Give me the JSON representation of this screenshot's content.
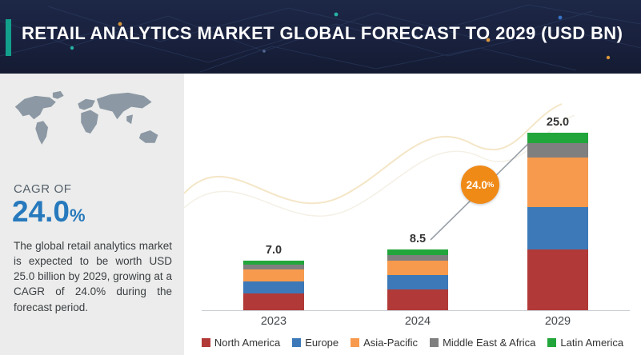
{
  "title": "RETAIL ANALYTICS MARKET GLOBAL FORECAST TO 2029 (USD BN)",
  "sidebar": {
    "cagr_label": "CAGR OF",
    "cagr_value": "24.0",
    "cagr_unit": "%",
    "description": "The global retail analytics market is expected to be worth USD 25.0 billion by 2029, growing at a CAGR of 24.0% during the forecast period."
  },
  "colors": {
    "banner_bg": "#18203c",
    "accent_teal": "#12a08d",
    "cagr_blue": "#2779bd",
    "badge_orange": "#f08a17",
    "sidebar_bg": "#ebeceb"
  },
  "chart_data": {
    "type": "bar",
    "stacked": true,
    "title": "Retail Analytics Market Global Forecast (USD BN)",
    "categories": [
      "2023",
      "2024",
      "2029"
    ],
    "totals": [
      7.0,
      8.5,
      25.0
    ],
    "total_labels": [
      "7.0",
      "8.5",
      "25.0"
    ],
    "series": [
      {
        "name": "North America",
        "color": "#b13a38",
        "values": [
          2.4,
          2.9,
          8.5
        ]
      },
      {
        "name": "Europe",
        "color": "#3d79b8",
        "values": [
          1.7,
          2.1,
          6.0
        ]
      },
      {
        "name": "Asia-Pacific",
        "color": "#f79a4d",
        "values": [
          1.6,
          2.0,
          7.0
        ]
      },
      {
        "name": "Middle East & Africa",
        "color": "#7f7f7f",
        "values": [
          0.7,
          0.8,
          2.0
        ]
      },
      {
        "name": "Latin America",
        "color": "#22a63c",
        "values": [
          0.6,
          0.7,
          1.5
        ]
      }
    ],
    "ylim": [
      0,
      26
    ],
    "grid": false,
    "legend_position": "bottom",
    "annotation": {
      "value": "24.0",
      "unit": "%",
      "meaning": "CAGR arrow between 2024 and 2029"
    }
  }
}
